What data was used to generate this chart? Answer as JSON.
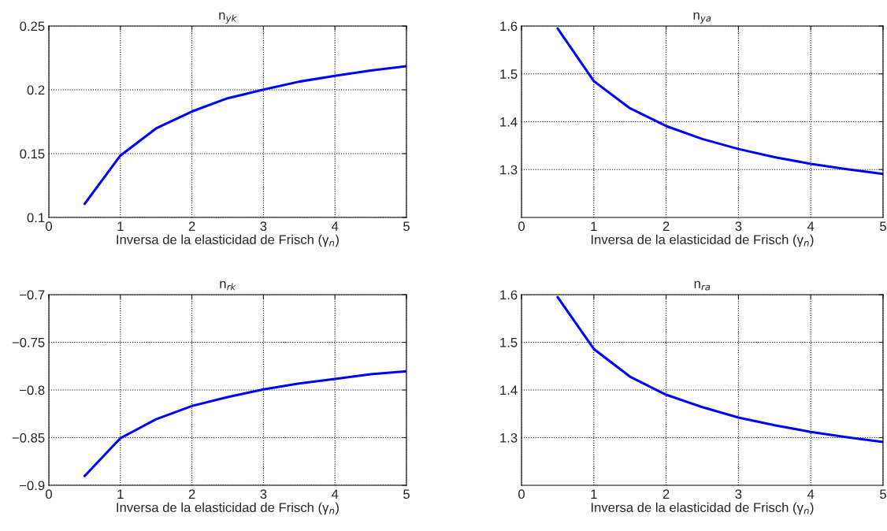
{
  "chart_data": [
    {
      "type": "line",
      "title": "n$_{yk}$",
      "xlabel": "Inversa de la elasticidad de Frisch (γ$_{n}$)",
      "x": [
        0.5,
        1,
        1.5,
        2,
        2.5,
        3,
        3.5,
        4,
        4.5,
        5
      ],
      "xlim": [
        0,
        5
      ],
      "xticks": [
        0,
        1,
        2,
        3,
        4,
        5
      ],
      "ylim": [
        0.1,
        0.25
      ],
      "yticks": [
        {
          "value": 0.1,
          "label": "0.1"
        },
        {
          "value": 0.15,
          "label": "0.15"
        },
        {
          "value": 0.2,
          "label": "0.2"
        },
        {
          "value": 0.25,
          "label": "0.25"
        }
      ],
      "grid": true,
      "line_style": "solid",
      "series": [
        {
          "color": "#0000ff",
          "values": [
            0.1106,
            0.1485,
            0.1698,
            0.183,
            0.1934,
            0.2002,
            0.2064,
            0.2109,
            0.2151,
            0.2185
          ]
        }
      ]
    },
    {
      "type": "line",
      "title": "n$_{ya}$",
      "xlabel": "Inversa de la elasticidad de Frisch (γ$_{n}$)",
      "x": [
        0.5,
        1,
        1.5,
        2,
        2.5,
        3,
        3.5,
        4,
        4.5,
        5
      ],
      "xlim": [
        0,
        5
      ],
      "xticks": [
        0,
        1,
        2,
        3,
        4,
        5
      ],
      "ylim": [
        1.2,
        1.6
      ],
      "yticks": [
        {
          "value": 1.3,
          "label": "1.3"
        },
        {
          "value": 1.4,
          "label": "1.4"
        },
        {
          "value": 1.5,
          "label": "1.5"
        },
        {
          "value": 1.6,
          "label": "1.6"
        }
      ],
      "grid": true,
      "line_style": "solid",
      "series": [
        {
          "color": "#0000ff",
          "values": [
            1.595,
            1.485,
            1.428,
            1.391,
            1.364,
            1.343,
            1.326,
            1.312,
            1.301,
            1.291
          ]
        }
      ]
    },
    {
      "type": "line",
      "title": "n$_{rk}$",
      "xlabel": "Inversa de la elasticidad de Frisch (γ$_{n}$)",
      "x": [
        0.5,
        1,
        1.5,
        2,
        2.5,
        3,
        3.5,
        4,
        4.5,
        5
      ],
      "xlim": [
        0,
        5
      ],
      "xticks": [
        0,
        1,
        2,
        3,
        4,
        5
      ],
      "ylim": [
        -0.9,
        -0.7
      ],
      "yticks": [
        {
          "value": -0.9,
          "label": "−0.9"
        },
        {
          "value": -0.85,
          "label": "−0.85"
        },
        {
          "value": -0.8,
          "label": "−0.8"
        },
        {
          "value": -0.75,
          "label": "−0.75"
        },
        {
          "value": -0.7,
          "label": "−0.7"
        }
      ],
      "grid": true,
      "line_style": "solid",
      "series": [
        {
          "color": "#0000ff",
          "values": [
            -0.8903,
            -0.8506,
            -0.8307,
            -0.8168,
            -0.8074,
            -0.7994,
            -0.7932,
            -0.7884,
            -0.7835,
            -0.7804
          ]
        }
      ]
    },
    {
      "type": "line",
      "title": "n$_{ra}$",
      "xlabel": "Inversa de la elasticidad de Frisch (γ$_{n}$)",
      "x": [
        0.5,
        1,
        1.5,
        2,
        2.5,
        3,
        3.5,
        4,
        4.5,
        5
      ],
      "xlim": [
        0,
        5
      ],
      "xticks": [
        0,
        1,
        2,
        3,
        4,
        5
      ],
      "ylim": [
        1.2,
        1.6
      ],
      "yticks": [
        {
          "value": 1.3,
          "label": "1.3"
        },
        {
          "value": 1.4,
          "label": "1.4"
        },
        {
          "value": 1.5,
          "label": "1.5"
        },
        {
          "value": 1.6,
          "label": "1.6"
        }
      ],
      "grid": true,
      "line_style": "solid",
      "series": [
        {
          "color": "#0000ff",
          "values": [
            1.595,
            1.486,
            1.428,
            1.39,
            1.364,
            1.342,
            1.326,
            1.312,
            1.301,
            1.291
          ]
        }
      ]
    }
  ]
}
